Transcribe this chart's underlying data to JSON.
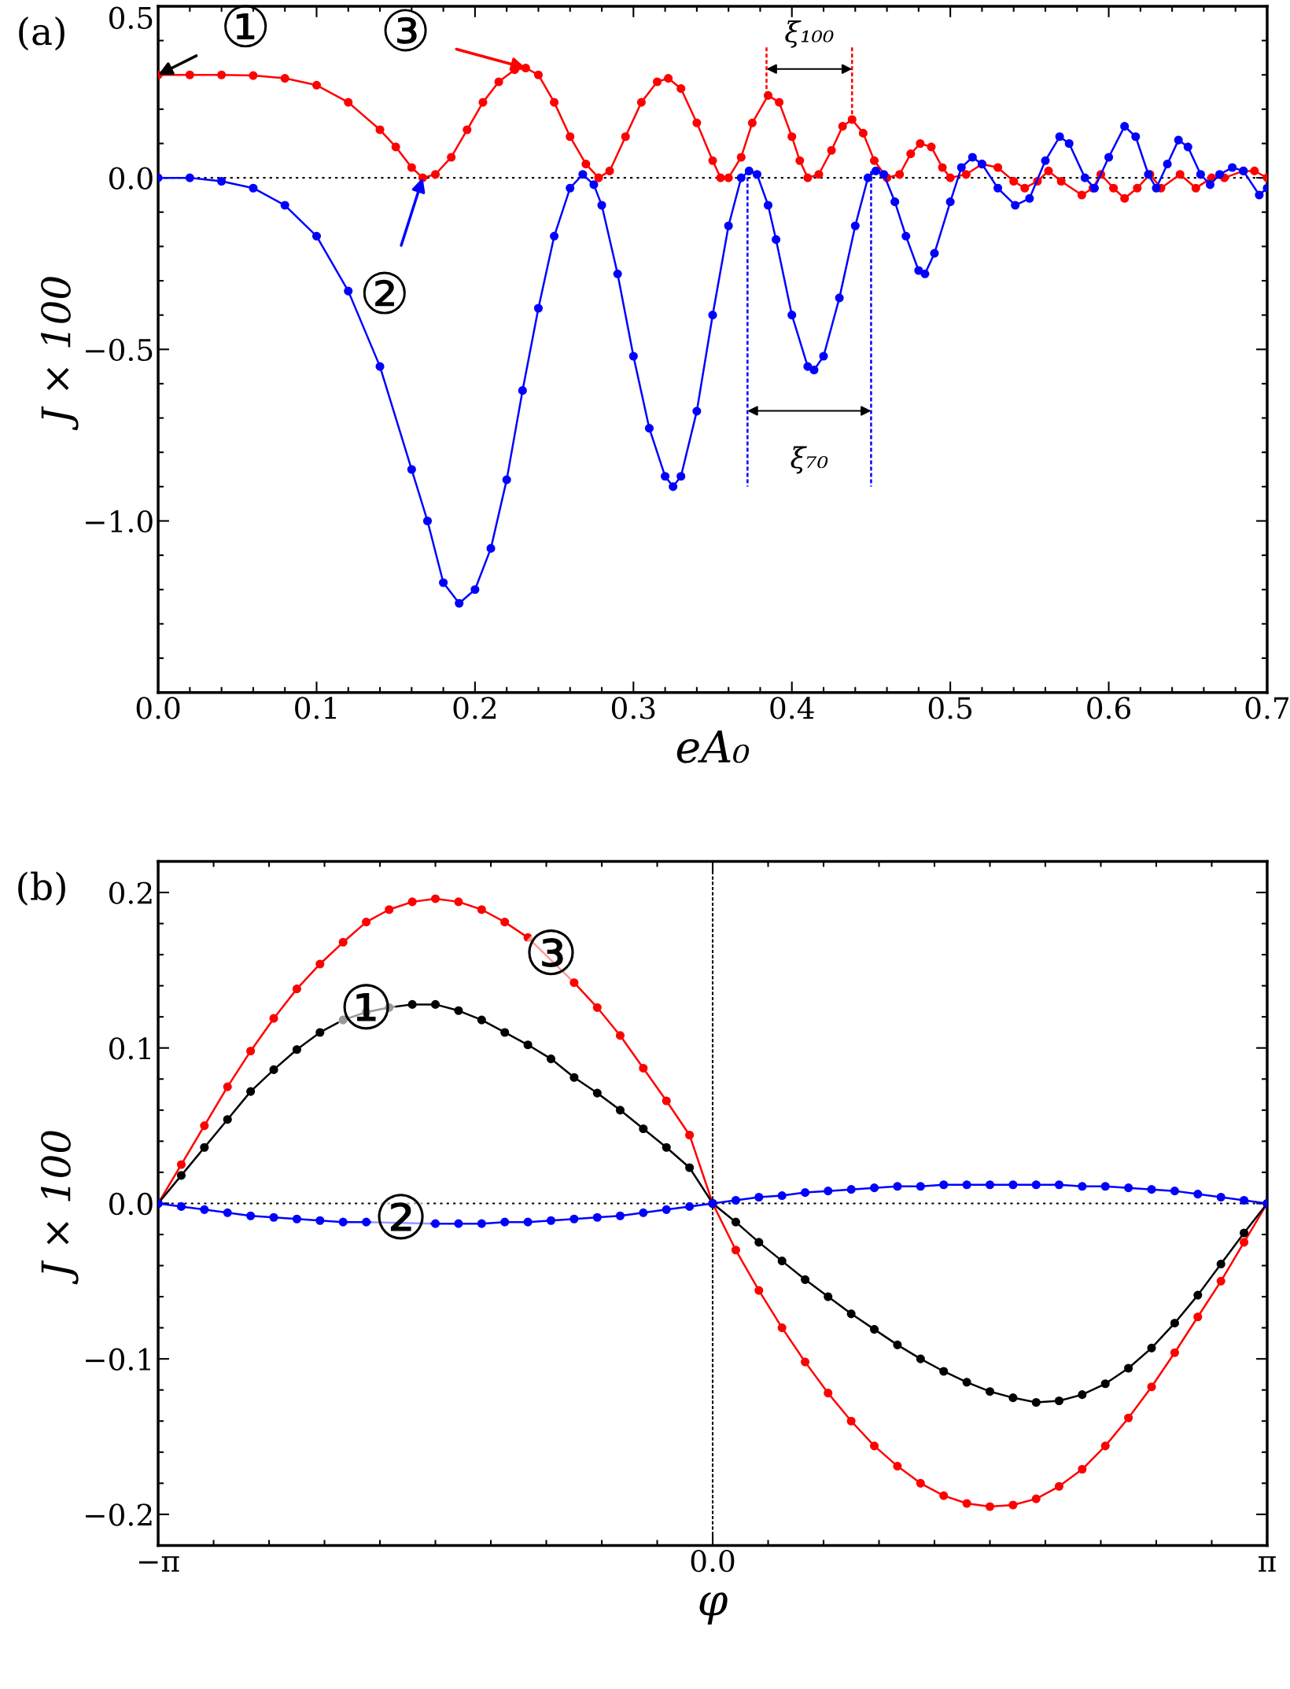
{
  "chart_data": [
    {
      "type": "line",
      "xlabel": "eA₀",
      "ylabel": "J × 100",
      "xlim": [
        0.0,
        0.7
      ],
      "ylim": [
        -1.5,
        0.5
      ],
      "xticks": [
        {
          "value": 0.0,
          "label": "0.0"
        },
        0.1,
        0.2,
        0.3,
        0.4,
        0.5,
        0.6,
        0.7
      ],
      "yticks": [
        0.5,
        {
          "value": 0.0,
          "label": "0.0"
        },
        {
          "value": -0.5,
          "label": "−0.5"
        },
        {
          "value": -1.0,
          "label": "−1.0"
        }
      ],
      "marker": "circle",
      "line_style": "solid",
      "grid": false,
      "legend": false,
      "ref_lines": [
        {
          "axis": "y",
          "value": 0.0,
          "color": "#000000",
          "line_style": "dotted"
        }
      ],
      "series": [
        {
          "color": "#ff0000",
          "x": [
            0,
            0.02,
            0.04,
            0.06,
            0.08,
            0.1,
            0.12,
            0.14,
            0.15,
            0.16,
            0.167,
            0.175,
            0.185,
            0.195,
            0.205,
            0.215,
            0.225,
            0.232,
            0.24,
            0.25,
            0.26,
            0.27,
            0.278,
            0.285,
            0.295,
            0.305,
            0.315,
            0.322,
            0.33,
            0.34,
            0.35,
            0.355,
            0.36,
            0.368,
            0.375,
            0.385,
            0.392,
            0.4,
            0.405,
            0.41,
            0.417,
            0.425,
            0.432,
            0.438,
            0.445,
            0.452,
            0.46,
            0.468,
            0.475,
            0.481,
            0.488,
            0.495,
            0.5,
            0.51,
            0.52,
            0.53,
            0.54,
            0.547,
            0.555,
            0.562,
            0.57,
            0.583,
            0.59,
            0.595,
            0.603,
            0.61,
            0.618,
            0.626,
            0.633,
            0.645,
            0.655,
            0.665,
            0.673,
            0.685,
            0.692,
            0.7
          ],
          "values": [
            0.3,
            0.3,
            0.3,
            0.298,
            0.29,
            0.27,
            0.22,
            0.14,
            0.09,
            0.03,
            0.0,
            0.01,
            0.06,
            0.14,
            0.22,
            0.28,
            0.315,
            0.32,
            0.3,
            0.22,
            0.12,
            0.04,
            0.0,
            0.02,
            0.12,
            0.22,
            0.28,
            0.29,
            0.26,
            0.16,
            0.05,
            0.0,
            0.0,
            0.06,
            0.16,
            0.24,
            0.22,
            0.12,
            0.05,
            0.0,
            0.01,
            0.08,
            0.15,
            0.17,
            0.13,
            0.05,
            0.0,
            0.01,
            0.07,
            0.1,
            0.09,
            0.03,
            0.0,
            0.01,
            0.04,
            0.03,
            -0.01,
            -0.03,
            -0.01,
            0.02,
            -0.01,
            -0.05,
            -0.03,
            0.01,
            -0.03,
            -0.06,
            -0.03,
            0.01,
            -0.03,
            0.01,
            -0.03,
            0.0,
            0.0,
            0.02,
            0.02,
            0.0
          ]
        },
        {
          "color": "#0000ff",
          "x": [
            0,
            0.02,
            0.04,
            0.06,
            0.08,
            0.1,
            0.12,
            0.14,
            0.16,
            0.17,
            0.18,
            0.19,
            0.2,
            0.21,
            0.22,
            0.23,
            0.24,
            0.25,
            0.26,
            0.268,
            0.275,
            0.28,
            0.29,
            0.3,
            0.31,
            0.32,
            0.325,
            0.33,
            0.34,
            0.35,
            0.36,
            0.368,
            0.373,
            0.378,
            0.385,
            0.39,
            0.4,
            0.41,
            0.414,
            0.42,
            0.43,
            0.44,
            0.448,
            0.453,
            0.458,
            0.465,
            0.472,
            0.48,
            0.484,
            0.49,
            0.5,
            0.507,
            0.514,
            0.52,
            0.53,
            0.541,
            0.55,
            0.56,
            0.569,
            0.575,
            0.585,
            0.591,
            0.6,
            0.61,
            0.617,
            0.625,
            0.63,
            0.637,
            0.644,
            0.65,
            0.658,
            0.664,
            0.67,
            0.678,
            0.685,
            0.695,
            0.7
          ],
          "values": [
            0.0,
            0.0,
            -0.01,
            -0.03,
            -0.08,
            -0.17,
            -0.33,
            -0.55,
            -0.85,
            -1.0,
            -1.18,
            -1.24,
            -1.2,
            -1.08,
            -0.88,
            -0.62,
            -0.38,
            -0.17,
            -0.03,
            0.01,
            -0.02,
            -0.08,
            -0.28,
            -0.52,
            -0.73,
            -0.87,
            -0.9,
            -0.87,
            -0.68,
            -0.4,
            -0.14,
            0.0,
            0.02,
            0.01,
            -0.08,
            -0.18,
            -0.4,
            -0.55,
            -0.56,
            -0.52,
            -0.35,
            -0.14,
            0.0,
            0.02,
            0.01,
            -0.07,
            -0.17,
            -0.27,
            -0.28,
            -0.22,
            -0.07,
            0.03,
            0.06,
            0.04,
            -0.03,
            -0.08,
            -0.06,
            0.05,
            0.12,
            0.1,
            0.0,
            -0.03,
            0.06,
            0.15,
            0.12,
            0.01,
            -0.03,
            0.04,
            0.11,
            0.09,
            0.01,
            -0.02,
            0.01,
            0.03,
            0.02,
            -0.05,
            -0.03
          ]
        },
        {
          "color": "#ff0000",
          "marker": "none",
          "line_style": "dashed",
          "x": [
            0.384,
            0.384
          ],
          "values": [
            0.38,
            0.24
          ]
        },
        {
          "color": "#ff0000",
          "marker": "none",
          "line_style": "dashed",
          "x": [
            0.438,
            0.438
          ],
          "values": [
            0.38,
            0.17
          ]
        },
        {
          "color": "#0000ff",
          "marker": "none",
          "line_style": "dashed",
          "x": [
            0.372,
            0.372
          ],
          "values": [
            0.02,
            -0.9
          ]
        },
        {
          "color": "#0000ff",
          "marker": "none",
          "line_style": "dashed",
          "x": [
            0.45,
            0.45
          ],
          "values": [
            0.02,
            -0.9
          ]
        }
      ],
      "annotations": [
        "(a)",
        {
          "text": "①",
          "x": 0.0,
          "y": 0.3
        },
        {
          "text": "②",
          "x": 0.167,
          "y": 0.0
        },
        {
          "text": "③",
          "x": 0.232,
          "y": 0.32
        },
        "ξ₁₀₀",
        "ξ₇₀"
      ]
    },
    {
      "type": "line",
      "xlabel": "φ",
      "ylabel": "J × 100",
      "xlim": [
        -3.142,
        3.142
      ],
      "ylim": [
        -0.22,
        0.22
      ],
      "xticks": [
        {
          "value": -3.142,
          "label": "−π"
        },
        {
          "value": 0.0,
          "label": "0.0"
        },
        {
          "value": 3.142,
          "label": "π"
        }
      ],
      "yticks": [
        0.2,
        0.1,
        {
          "value": 0.0,
          "label": "0.0"
        },
        {
          "value": -0.1,
          "label": "−0.1"
        },
        {
          "value": -0.2,
          "label": "−0.2"
        }
      ],
      "marker": "circle",
      "line_style": "solid",
      "grid": false,
      "legend": false,
      "ref_lines": [
        {
          "axis": "y",
          "value": 0.0,
          "color": "#000000",
          "line_style": "dotted"
        },
        {
          "axis": "x",
          "value": 0.0,
          "color": "#000000",
          "line_style": "dashed"
        }
      ],
      "x": [
        -3.142,
        -3.011,
        -2.88,
        -2.749,
        -2.618,
        -2.487,
        -2.356,
        -2.225,
        -2.094,
        -1.963,
        -1.833,
        -1.702,
        -1.571,
        -1.44,
        -1.309,
        -1.178,
        -1.047,
        -0.916,
        -0.785,
        -0.654,
        -0.524,
        -0.393,
        -0.262,
        -0.131,
        0.0,
        0.131,
        0.262,
        0.393,
        0.524,
        0.654,
        0.785,
        0.916,
        1.047,
        1.178,
        1.309,
        1.44,
        1.571,
        1.702,
        1.833,
        1.963,
        2.094,
        2.225,
        2.356,
        2.487,
        2.618,
        2.749,
        2.88,
        3.011,
        3.142
      ],
      "series": [
        {
          "color": "#ff0000",
          "values": [
            0.0,
            0.025,
            0.05,
            0.075,
            0.098,
            0.119,
            0.138,
            0.154,
            0.168,
            0.181,
            0.189,
            0.194,
            0.196,
            0.194,
            0.189,
            0.181,
            0.171,
            null,
            0.142,
            0.126,
            0.108,
            0.087,
            0.066,
            0.044,
            0.0,
            -0.03,
            -0.056,
            -0.08,
            -0.102,
            -0.122,
            -0.14,
            -0.156,
            -0.169,
            -0.18,
            -0.188,
            -0.193,
            -0.195,
            -0.194,
            -0.19,
            -0.182,
            -0.171,
            -0.156,
            -0.138,
            -0.118,
            -0.096,
            -0.073,
            -0.05,
            -0.025,
            0.0
          ]
        },
        {
          "color": "#000000",
          "values": [
            0.0,
            0.018,
            0.036,
            0.054,
            0.072,
            0.086,
            0.099,
            0.11,
            0.118,
            0.123,
            0.126,
            0.128,
            0.128,
            0.124,
            0.118,
            0.11,
            0.102,
            0.093,
            0.081,
            0.071,
            0.06,
            0.048,
            0.036,
            0.023,
            0.0,
            -0.012,
            -0.025,
            -0.037,
            -0.049,
            -0.06,
            -0.071,
            -0.081,
            -0.091,
            -0.1,
            -0.108,
            -0.115,
            -0.121,
            -0.125,
            -0.128,
            -0.127,
            -0.123,
            -0.116,
            -0.106,
            -0.093,
            -0.077,
            -0.059,
            -0.039,
            -0.019,
            0.0
          ]
        },
        {
          "color": "#0000ff",
          "values": [
            0.0,
            -0.002,
            -0.004,
            -0.006,
            -0.008,
            -0.009,
            -0.01,
            -0.011,
            -0.012,
            -0.012,
            null,
            null,
            -0.013,
            -0.013,
            -0.013,
            -0.012,
            -0.012,
            -0.011,
            -0.01,
            -0.009,
            -0.008,
            -0.006,
            -0.004,
            -0.002,
            0.0,
            0.002,
            0.004,
            0.005,
            0.007,
            0.008,
            0.009,
            0.01,
            0.011,
            0.011,
            0.012,
            0.012,
            0.012,
            0.012,
            0.012,
            0.012,
            0.011,
            0.011,
            0.01,
            0.009,
            0.008,
            0.006,
            0.004,
            0.002,
            0.0
          ]
        }
      ],
      "annotations": [
        "(b)",
        {
          "text": "①",
          "x": -1.963,
          "y": 0.123
        },
        {
          "text": "②",
          "x": -1.767,
          "y": -0.012
        },
        {
          "text": "③",
          "x": -0.916,
          "y": 0.158
        }
      ]
    }
  ]
}
